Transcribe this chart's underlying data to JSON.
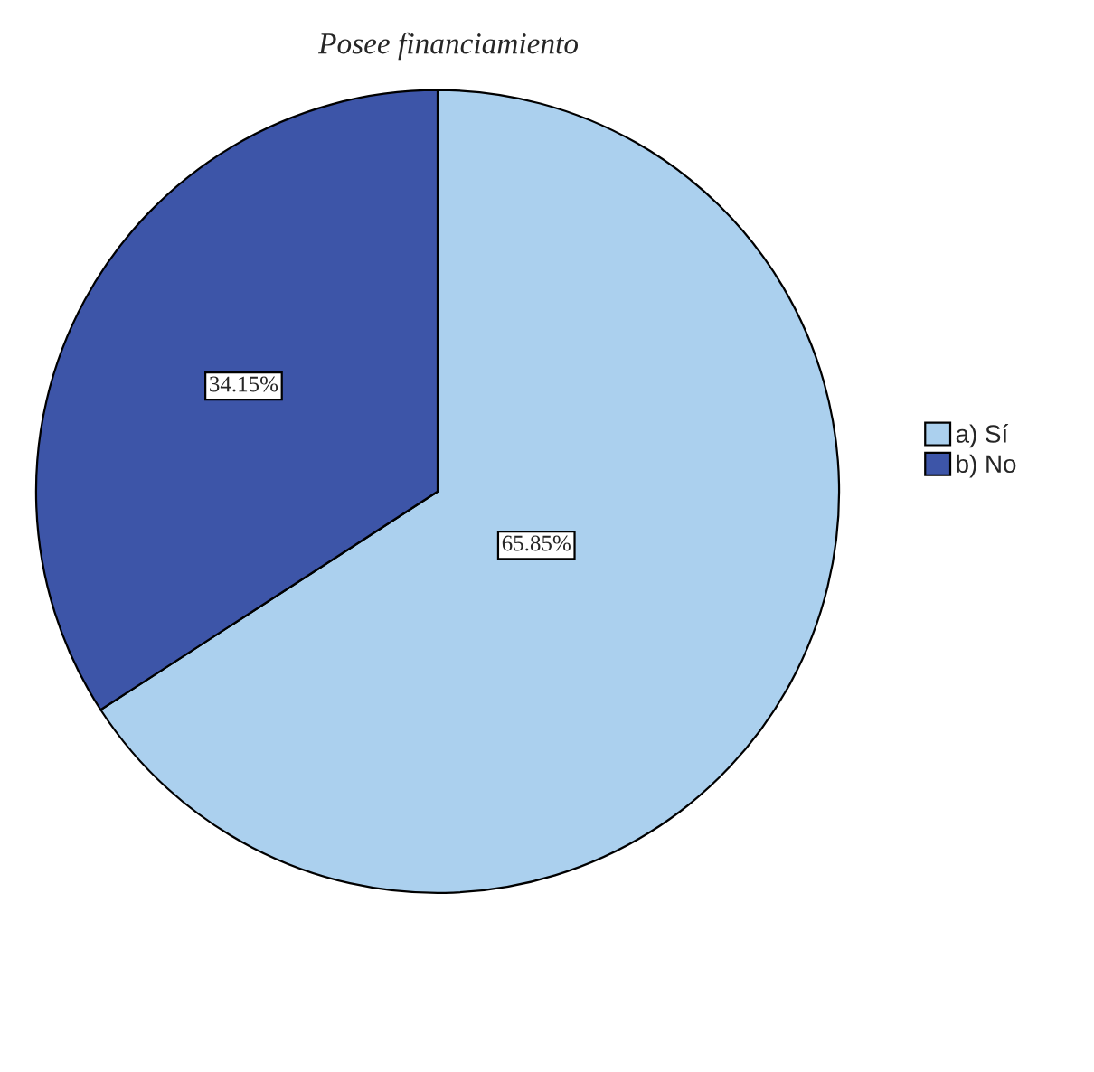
{
  "chart_data": {
    "type": "pie",
    "title": "Posee financiamiento",
    "categories": [
      "a) Sí",
      "b) No"
    ],
    "values": [
      65.85,
      34.15
    ],
    "colors": [
      "#abd0ee",
      "#3d55a8"
    ],
    "value_labels": [
      "65.85%",
      "34.15%"
    ],
    "legend": "right"
  }
}
